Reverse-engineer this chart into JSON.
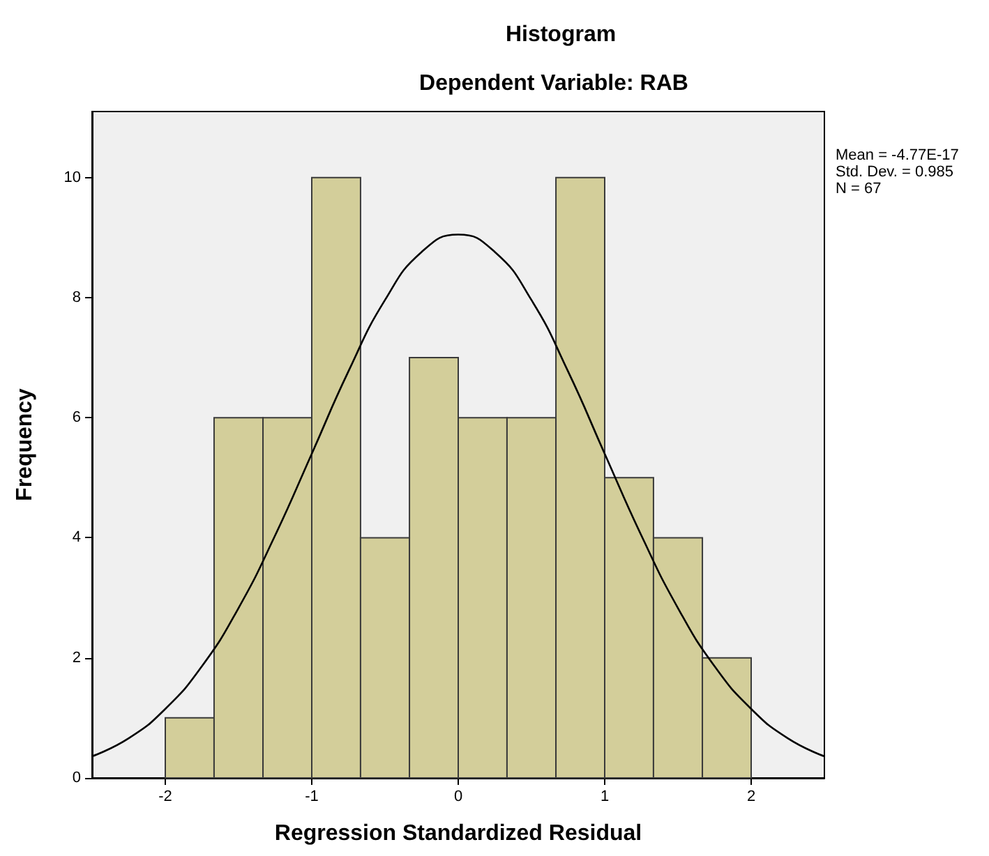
{
  "chart_data": {
    "type": "histogram",
    "title": "Histogram",
    "subtitle": "Dependent Variable: RAB",
    "xlabel": "Regression Standardized Residual",
    "ylabel": "Frequency",
    "bins": [
      -2,
      -1.667,
      -1.333,
      -1,
      -0.667,
      -0.333,
      0,
      0.333,
      0.667,
      1,
      1.333,
      1.667,
      2
    ],
    "values": [
      1,
      6,
      6,
      10,
      4,
      7,
      6,
      6,
      10,
      5,
      4,
      2
    ],
    "color": "#d3ce9a",
    "series": [
      {
        "type": "line",
        "color": "#000000",
        "x": [
          -2.5,
          -2.25,
          -2,
          -1.75,
          -1.5,
          -1.25,
          -1,
          -0.75,
          -0.5,
          -0.25,
          0,
          0.25,
          0.5,
          0.75,
          1,
          1.25,
          1.5,
          1.75,
          2,
          2.25,
          2.5
        ],
        "values": [
          0.36,
          0.66,
          1.15,
          1.86,
          2.83,
          4.04,
          5.4,
          6.77,
          7.96,
          8.76,
          9.05,
          8.76,
          7.96,
          6.77,
          5.4,
          4.04,
          2.83,
          1.86,
          1.15,
          0.66,
          0.36
        ]
      }
    ],
    "annotations": [
      "Mean = -4.77E-17",
      "Std. Dev. = 0.985",
      "N = 67"
    ],
    "xlim": [
      -2.5,
      2.5
    ],
    "xticks": [
      -2,
      -1,
      0,
      1,
      2
    ],
    "ylim": [
      0,
      11.1
    ],
    "yticks": [
      0,
      2,
      4,
      6,
      8,
      10
    ],
    "grid": false
  }
}
